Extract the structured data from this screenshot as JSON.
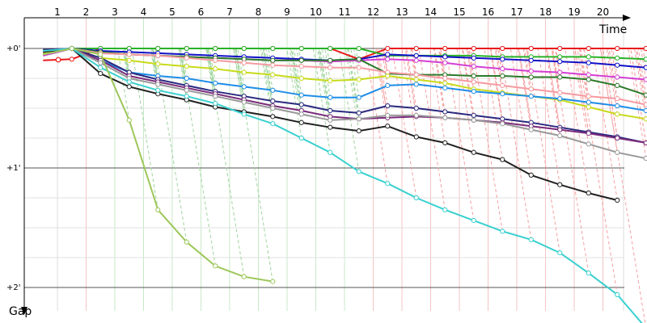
{
  "chart_data": {
    "type": "line",
    "title": "",
    "xlabel": "Time",
    "ylabel": "Gap",
    "x_ticks": [
      "1",
      "2",
      "3",
      "4",
      "5",
      "6",
      "7",
      "8",
      "9",
      "10",
      "11",
      "12",
      "13",
      "14",
      "15",
      "16",
      "17",
      "18",
      "19",
      "20"
    ],
    "y_ticks": [
      "+0'",
      "+1'",
      "+2'"
    ],
    "xlim": [
      0.4,
      21.5
    ],
    "ylim": [
      -0.2,
      2.0
    ],
    "grid": true,
    "legend": "none",
    "series": [
      {
        "color": "#e8191a",
        "start": 0.5,
        "y": [
          0.1,
          0.09,
          0.0,
          0.0,
          0.0,
          0.0,
          0.0,
          0.0,
          0.0,
          0.0,
          0.0,
          0.09,
          0.0,
          0.0,
          0.0,
          0.0,
          0.0,
          0.0,
          0.0,
          0.0,
          0.0,
          0.0
        ]
      },
      {
        "color": "#27b327",
        "start": 0.5,
        "y": [
          0.06,
          0.0,
          0.0,
          0.0,
          0.0,
          0.0,
          0.0,
          0.0,
          0.0,
          0.0,
          0.0,
          0.0,
          0.06,
          0.06,
          0.06,
          0.06,
          0.07,
          0.07,
          0.07,
          0.07,
          0.08,
          0.09
        ]
      },
      {
        "color": "#1010c8",
        "start": 0.5,
        "y": [
          0.04,
          0.0,
          0.02,
          0.03,
          0.04,
          0.05,
          0.06,
          0.07,
          0.08,
          0.09,
          0.1,
          0.09,
          0.05,
          0.06,
          0.07,
          0.08,
          0.09,
          0.1,
          0.11,
          0.12,
          0.14,
          0.16
        ]
      },
      {
        "color": "#d43fd4",
        "start": 0.5,
        "y": [
          0.06,
          0.0,
          0.04,
          0.05,
          0.06,
          0.07,
          0.08,
          0.09,
          0.1,
          0.1,
          0.11,
          0.1,
          0.09,
          0.1,
          0.12,
          0.15,
          0.17,
          0.19,
          0.2,
          0.22,
          0.24,
          0.26
        ]
      },
      {
        "color": "#2a7a2a",
        "start": 0.5,
        "y": [
          0.02,
          0.0,
          0.03,
          0.05,
          0.06,
          0.07,
          0.08,
          0.09,
          0.1,
          0.1,
          0.1,
          0.09,
          0.21,
          0.22,
          0.22,
          0.23,
          0.23,
          0.24,
          0.24,
          0.26,
          0.31,
          0.39
        ]
      },
      {
        "color": "#f59aa0",
        "start": 0.5,
        "y": [
          0.03,
          0.0,
          0.04,
          0.05,
          0.06,
          0.08,
          0.1,
          0.12,
          0.14,
          0.15,
          0.16,
          0.16,
          0.2,
          0.22,
          0.25,
          0.28,
          0.31,
          0.34,
          0.37,
          0.4,
          0.42,
          0.47
        ]
      },
      {
        "color": "#c8da1a",
        "start": 0.5,
        "y": [
          0.04,
          0.0,
          0.08,
          0.1,
          0.13,
          0.15,
          0.17,
          0.2,
          0.22,
          0.25,
          0.27,
          0.26,
          0.23,
          0.26,
          0.29,
          0.34,
          0.37,
          0.4,
          0.43,
          0.49,
          0.55,
          0.59
        ]
      },
      {
        "color": "#1e8de8",
        "start": 0.5,
        "y": [
          0.02,
          0.0,
          0.1,
          0.2,
          0.23,
          0.25,
          0.29,
          0.32,
          0.35,
          0.39,
          0.41,
          0.41,
          0.31,
          0.3,
          0.33,
          0.36,
          0.38,
          0.4,
          0.42,
          0.45,
          0.48,
          0.52
        ]
      },
      {
        "color": "#2a2a80",
        "start": 0.5,
        "y": [
          0.01,
          0.0,
          0.08,
          0.2,
          0.26,
          0.31,
          0.36,
          0.4,
          0.44,
          0.47,
          0.52,
          0.54,
          0.48,
          0.5,
          0.53,
          0.56,
          0.59,
          0.62,
          0.66,
          0.7,
          0.74,
          0.79
        ]
      },
      {
        "color": "#7a2a7a",
        "start": 0.5,
        "y": [
          0.02,
          0.0,
          0.1,
          0.23,
          0.28,
          0.33,
          0.38,
          0.43,
          0.48,
          0.52,
          0.57,
          0.59,
          0.58,
          0.57,
          0.58,
          0.6,
          0.62,
          0.65,
          0.68,
          0.71,
          0.75,
          0.79
        ]
      },
      {
        "color": "#999999",
        "start": 0.5,
        "y": [
          0.02,
          0.0,
          0.12,
          0.25,
          0.3,
          0.35,
          0.4,
          0.45,
          0.5,
          0.55,
          0.6,
          0.59,
          0.56,
          0.56,
          0.58,
          0.6,
          0.63,
          0.68,
          0.73,
          0.8,
          0.87,
          0.92
        ]
      },
      {
        "color": "#202020",
        "start": 0.5,
        "y": [
          0.03,
          0.0,
          0.21,
          0.32,
          0.38,
          0.43,
          0.49,
          0.53,
          0.57,
          0.62,
          0.66,
          0.69,
          0.65,
          0.74,
          0.79,
          0.87,
          0.93,
          1.06,
          1.14,
          1.21,
          1.27
        ]
      },
      {
        "color": "#3ad0d0",
        "start": 0.5,
        "y": [
          0.02,
          0.0,
          0.16,
          0.28,
          0.35,
          0.4,
          0.46,
          0.55,
          0.63,
          0.75,
          0.87,
          1.03,
          1.13,
          1.25,
          1.35,
          1.44,
          1.53,
          1.6,
          1.71,
          1.88,
          2.06,
          2.34
        ]
      },
      {
        "color": "#9dc75a",
        "start": 0.5,
        "y": [
          0.05,
          0.0,
          0.05,
          0.6,
          1.35,
          1.62,
          1.82,
          1.91,
          1.95
        ]
      }
    ]
  }
}
